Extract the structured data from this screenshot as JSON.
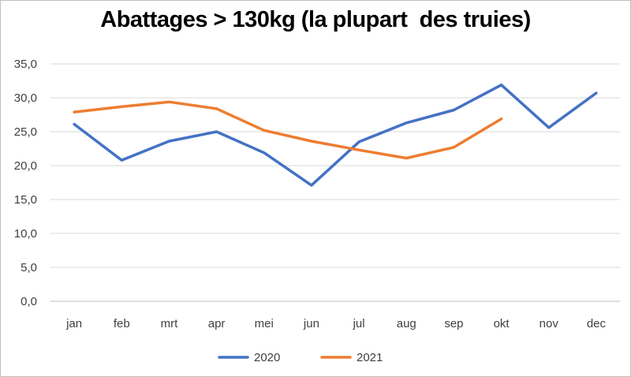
{
  "chart_data": {
    "type": "line",
    "title": "Abattages > 130kg (la plupart  des truies)",
    "xlabel": "",
    "ylabel": "",
    "categories": [
      "jan",
      "feb",
      "mrt",
      "apr",
      "mei",
      "jun",
      "jul",
      "aug",
      "sep",
      "okt",
      "nov",
      "dec"
    ],
    "ylim": [
      0,
      35
    ],
    "y_ticks": [
      "0,0",
      "5,0",
      "10,0",
      "15,0",
      "20,0",
      "25,0",
      "30,0",
      "35,0"
    ],
    "grid": true,
    "legend_position": "bottom",
    "series": [
      {
        "name": "2020",
        "color": "#4472c4",
        "values": [
          26.1,
          20.8,
          23.6,
          25.0,
          21.9,
          17.1,
          23.5,
          26.3,
          28.2,
          31.9,
          25.6,
          30.7
        ]
      },
      {
        "name": "2021",
        "color": "#ed7d31",
        "values": [
          27.9,
          28.7,
          29.4,
          28.4,
          25.2,
          23.6,
          22.3,
          21.1,
          22.7,
          26.9,
          null,
          null
        ]
      }
    ]
  }
}
